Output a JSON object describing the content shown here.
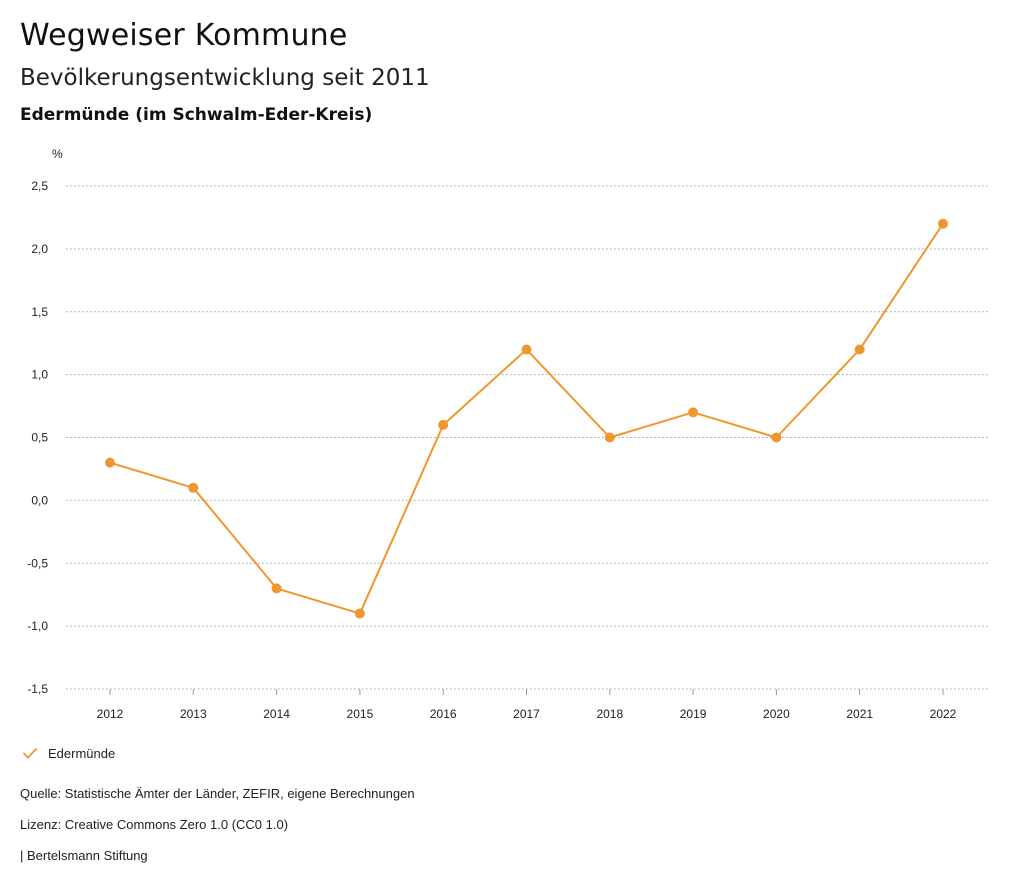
{
  "header": {
    "title": "Wegweiser Kommune",
    "subtitle": "Bevölkerungsentwicklung seit 2011",
    "region": "Edermünde (im Schwalm-Eder-Kreis)"
  },
  "chart_data": {
    "type": "line",
    "title": "Bevölkerungsentwicklung seit 2011",
    "ylabel": "%",
    "xlabel": "",
    "categories": [
      "2012",
      "2013",
      "2014",
      "2015",
      "2016",
      "2017",
      "2018",
      "2019",
      "2020",
      "2021",
      "2022"
    ],
    "series": [
      {
        "name": "Edermünde",
        "values": [
          0.3,
          0.1,
          -0.7,
          -0.9,
          0.6,
          1.2,
          0.5,
          0.7,
          0.5,
          1.2,
          2.2
        ]
      }
    ],
    "ylim": [
      -1.5,
      2.5
    ],
    "yticks": [
      2.5,
      2.0,
      1.5,
      1.0,
      0.5,
      0.0,
      -0.5,
      -1.0,
      -1.5
    ],
    "ytick_labels": [
      "2,5",
      "2,0",
      "1,5",
      "1,0",
      "0,5",
      "0,0",
      "-0,5",
      "-1,0",
      "-1,5"
    ],
    "grid": true,
    "legend_position": "bottom-left",
    "color": "#f0962e"
  },
  "legend": {
    "label": "Edermünde",
    "icon": "checkmark-icon"
  },
  "footer": {
    "source": "Quelle: Statistische Ämter der Länder, ZEFIR, eigene Berechnungen",
    "license": "Lizenz: Creative Commons Zero 1.0 (CC0 1.0)",
    "brand": "| Bertelsmann Stiftung"
  }
}
